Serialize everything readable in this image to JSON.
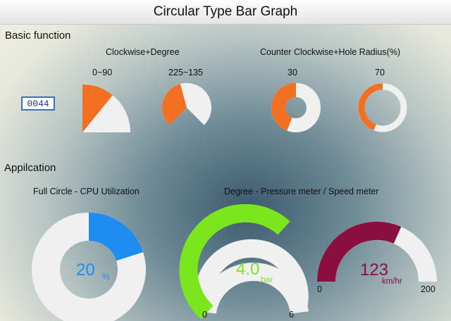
{
  "title": "Circular Type Bar Graph",
  "basic": {
    "section_label": "Basic function",
    "counter_value": "0044",
    "clockwise_label": "Clockwise+Degree",
    "counter_clockwise_label": "Counter Clockwise+Hole Radius(%)",
    "gauges": [
      {
        "label": "0~90",
        "direction": "clockwise",
        "start_deg": 0,
        "end_deg": 90,
        "hole_pct": 0,
        "fill_fraction": 0.44,
        "fill_color": "#f37022"
      },
      {
        "label": "225~135",
        "direction": "clockwise",
        "start_deg": 225,
        "end_deg": 135,
        "hole_pct": 0,
        "fill_fraction": 0.44,
        "fill_color": "#f37022"
      },
      {
        "label": "30",
        "direction": "counter-clockwise",
        "hole_pct": 30,
        "fill_fraction": 0.44,
        "fill_color": "#f37022"
      },
      {
        "label": "70",
        "direction": "counter-clockwise",
        "hole_pct": 70,
        "fill_fraction": 0.44,
        "fill_color": "#f37022"
      }
    ]
  },
  "application": {
    "section_label": "Appilcation",
    "cpu": {
      "label": "Full Circle - CPU Utilization",
      "value": "20",
      "unit": "%",
      "fraction": 0.2,
      "color": "#1e8cf0"
    },
    "meters_label": "Degree - Pressure meter / Speed meter",
    "pressure": {
      "value": "4.0",
      "unit": "bar",
      "min": "0",
      "max": "6",
      "fraction": 0.667,
      "color": "#7be61e"
    },
    "speed": {
      "value": "123",
      "unit": "km/hr",
      "min": "0",
      "max": "200",
      "fraction": 0.615,
      "color": "#8a0f3e"
    }
  },
  "colors": {
    "track": "#f0f0f0",
    "accent_orange": "#f37022"
  }
}
